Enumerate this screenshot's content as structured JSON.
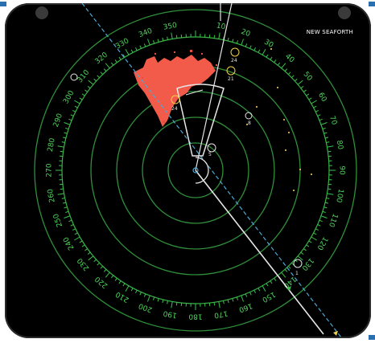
{
  "station": {
    "name": "NEW SEAFORTH"
  },
  "compass_labels": [
    "340",
    "350",
    "10",
    "20",
    "30",
    "40",
    "50",
    "60",
    "70",
    "80",
    "90",
    "100",
    "110",
    "120",
    "130",
    "140",
    "150",
    "160",
    "170",
    "180",
    "190",
    "200",
    "210",
    "220",
    "230",
    "240",
    "250",
    "260",
    "270",
    "280",
    "290",
    "300",
    "310",
    "320",
    "330"
  ],
  "targets": [
    {
      "id": "t1",
      "label": "24",
      "color": "#f2d24a"
    },
    {
      "id": "t2",
      "label": "21",
      "color": "#f2d24a"
    },
    {
      "id": "t3",
      "label": "24",
      "color": "#f2d24a"
    },
    {
      "id": "t4",
      "label": "8",
      "color": "#ffffff"
    },
    {
      "id": "t5",
      "label": "5",
      "color": "#ffffff"
    },
    {
      "id": "t6",
      "label": "1",
      "color": "#ffffff"
    }
  ],
  "colors": {
    "landmass": "#f25a4a",
    "rings": "#2f8f3a",
    "bearing_scale": "#37b347",
    "heading_line": "#e6e6e6"
  }
}
